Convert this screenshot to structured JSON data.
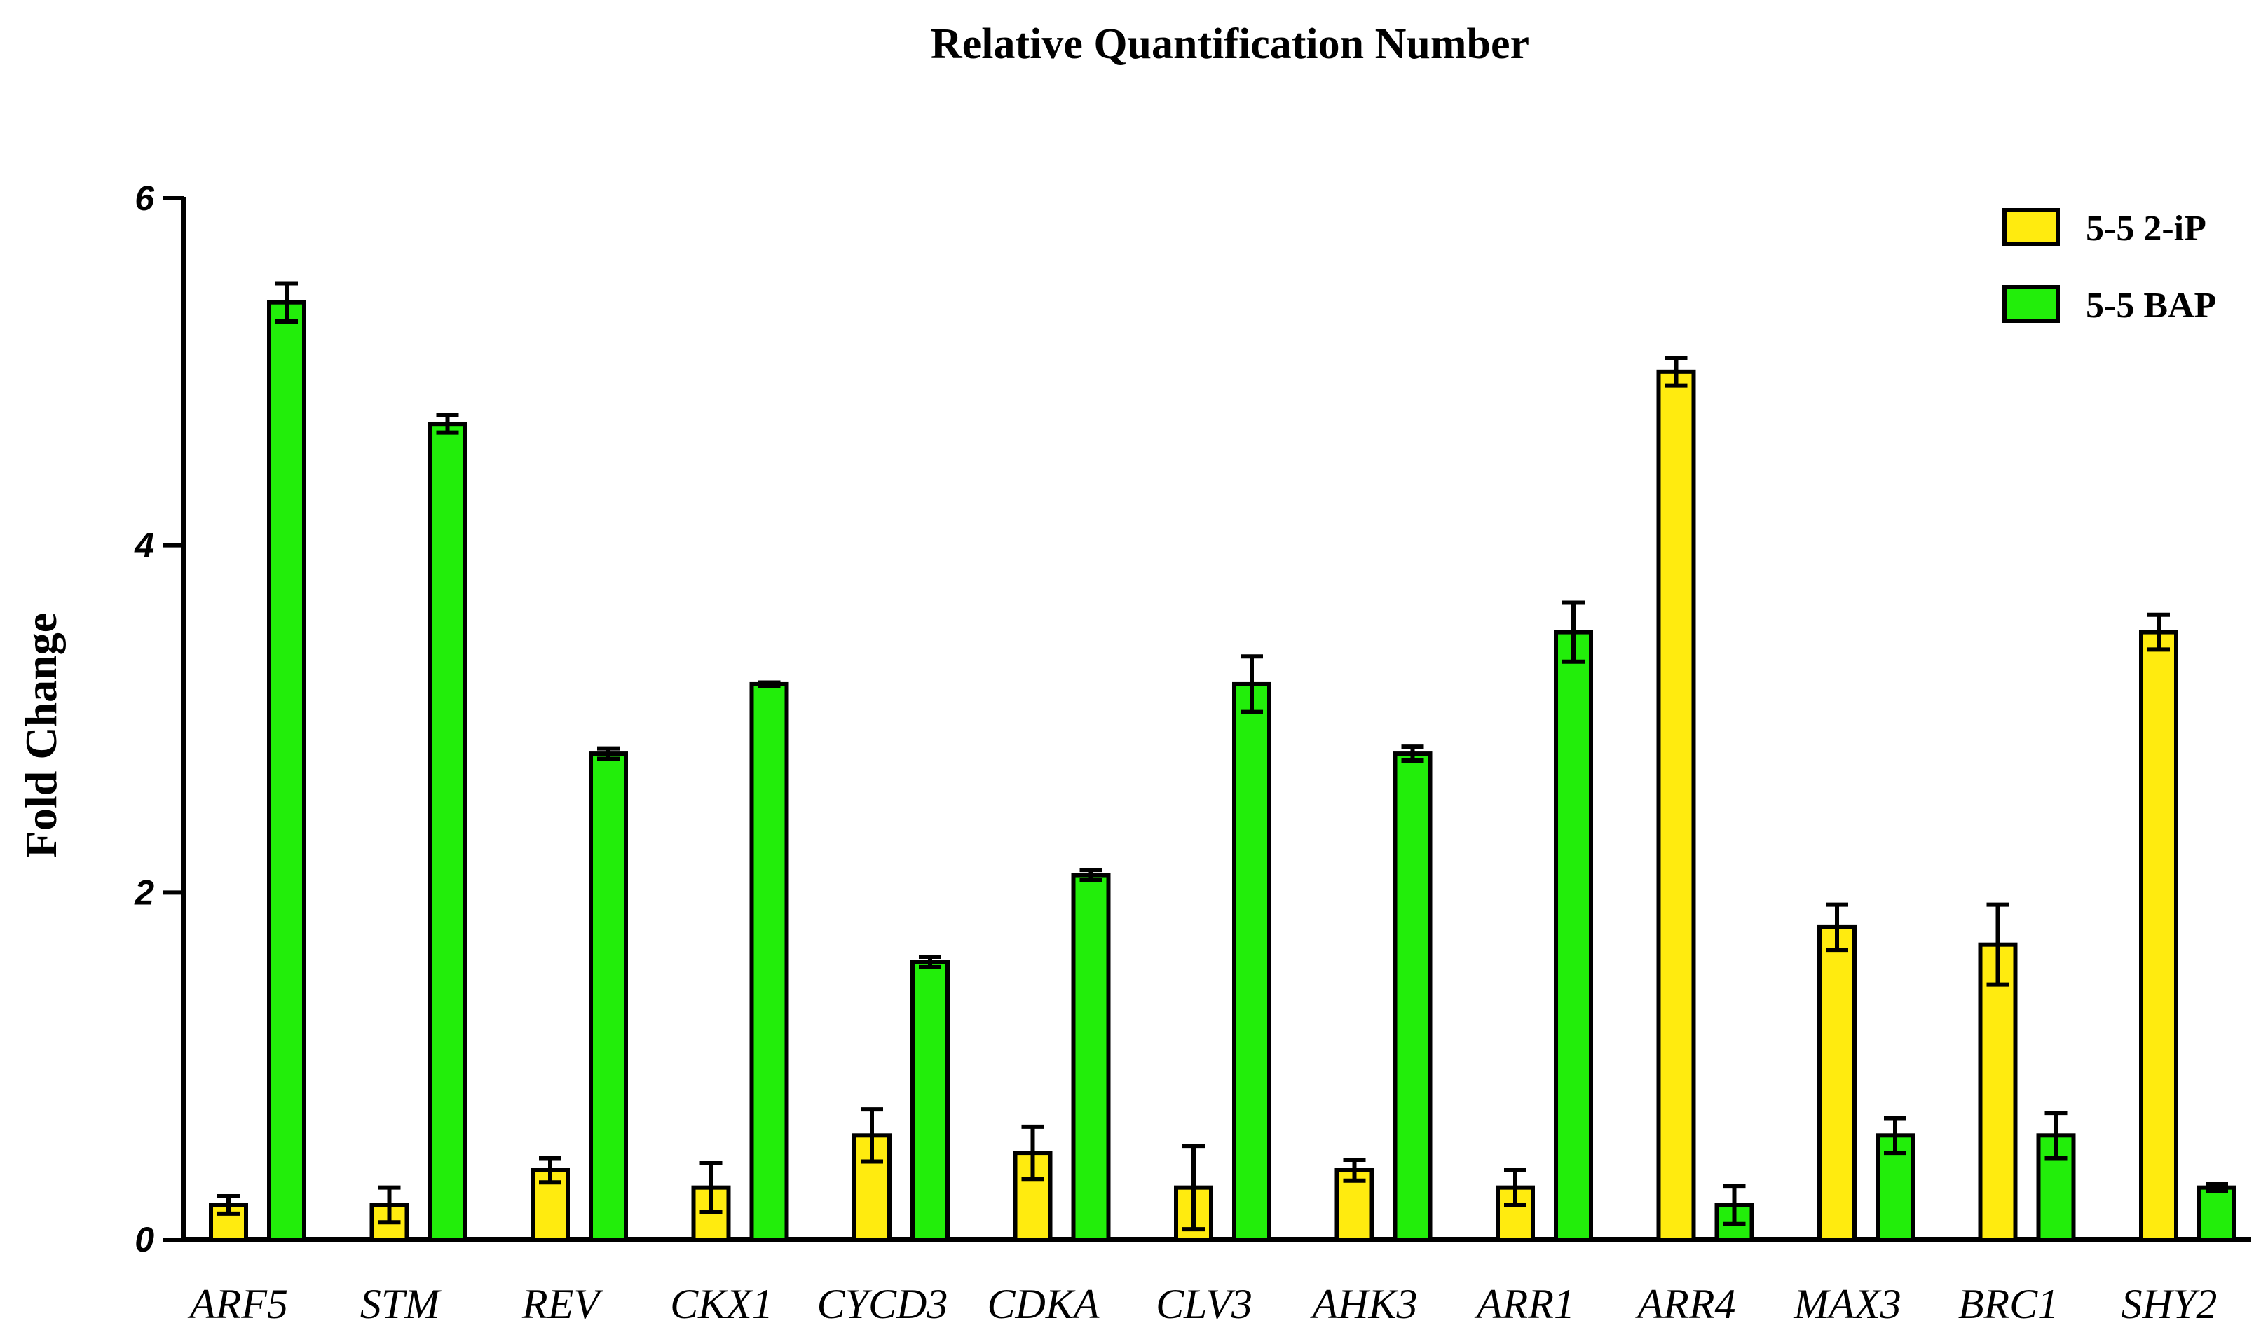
{
  "chart_data": {
    "type": "bar",
    "title": "Relative Quantification Number",
    "xlabel": "",
    "ylabel": "Fold Change",
    "ylim": [
      0,
      6
    ],
    "yticks": [
      0,
      2,
      4,
      6
    ],
    "categories": [
      "ARF5",
      "STM",
      "REV",
      "CKX1",
      "CYCD3",
      "CDKA",
      "CLV3",
      "AHK3",
      "ARR1",
      "ARR4",
      "MAX3",
      "BRC1",
      "SHY2"
    ],
    "series": [
      {
        "name": "5-5 2-iP",
        "color": "#FFEB0F",
        "values": [
          0.2,
          0.2,
          0.4,
          0.3,
          0.6,
          0.5,
          0.3,
          0.4,
          0.3,
          5.0,
          1.8,
          1.7,
          3.5
        ],
        "errors": [
          0.05,
          0.1,
          0.07,
          0.14,
          0.15,
          0.15,
          0.24,
          0.06,
          0.1,
          0.08,
          0.13,
          0.23,
          0.1
        ]
      },
      {
        "name": "5-5 BAP",
        "color": "#22EE0A",
        "values": [
          5.4,
          4.7,
          2.8,
          3.2,
          1.6,
          2.1,
          3.2,
          2.8,
          3.5,
          0.2,
          0.6,
          0.6,
          0.3
        ],
        "errors": [
          0.11,
          0.05,
          0.03,
          0.01,
          0.03,
          0.03,
          0.16,
          0.04,
          0.17,
          0.11,
          0.1,
          0.13,
          0.02
        ]
      }
    ],
    "legend": "top-right",
    "grid": false
  }
}
